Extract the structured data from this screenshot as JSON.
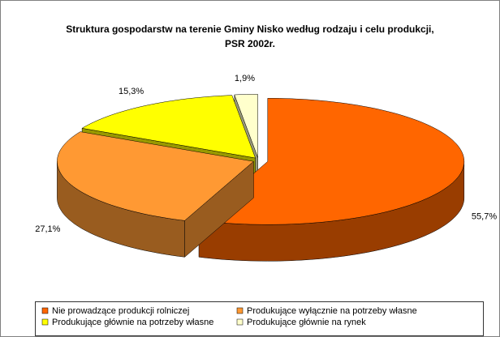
{
  "chart_data": {
    "type": "pie3d",
    "title": "Struktura gospodarstw na terenie Gminy Nisko według rodzaju i celu produkcji, PSR 2002r.",
    "categories": [
      "Nie prowadzące produkcji rolniczej",
      "Produkujące wyłącznie na potrzeby własne",
      "Produkujące głównie na potrzeby własne",
      "Produkujące głównie na rynek"
    ],
    "values": [
      55.7,
      27.1,
      15.3,
      1.9
    ],
    "value_labels": [
      "55,7%",
      "27,1%",
      "15,3%",
      "1,9%"
    ],
    "colors": [
      "#ff6600",
      "#ff9933",
      "#ffff00",
      "#ffffcc"
    ],
    "legend": "bottom"
  }
}
